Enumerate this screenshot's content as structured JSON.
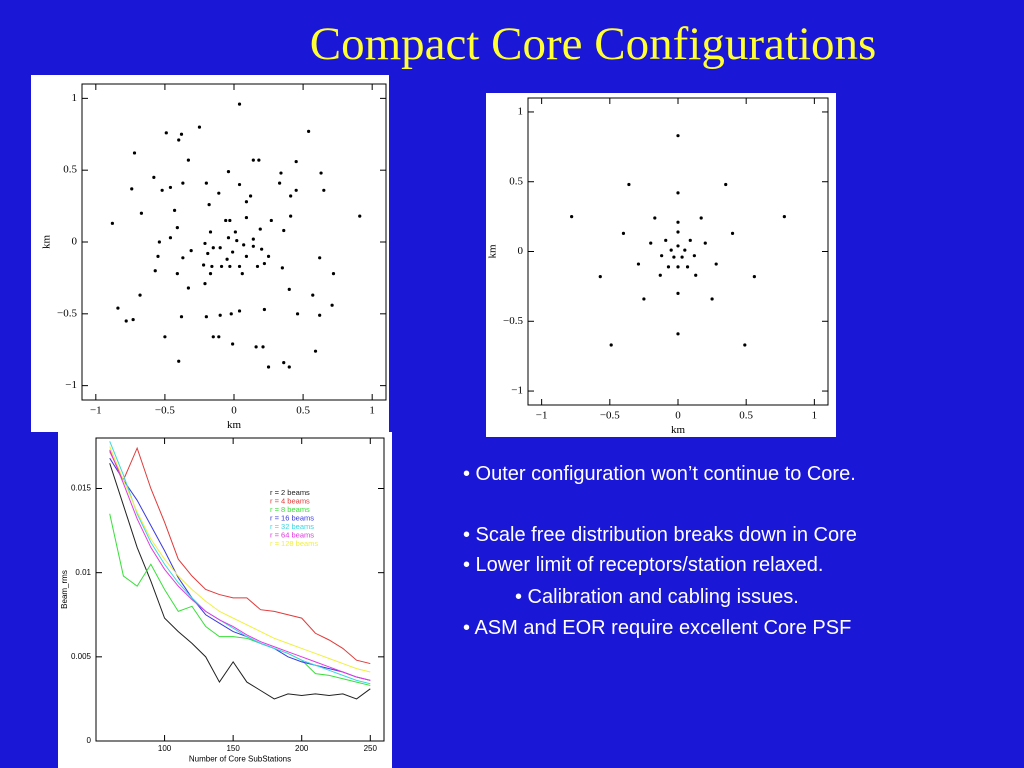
{
  "title": "Compact Core Configurations",
  "chart_data": [
    {
      "type": "scatter",
      "xlabel": "km",
      "ylabel": "km",
      "color": "#000000",
      "xlim": [
        -1.1,
        1.1
      ],
      "ylim": [
        -1.1,
        1.1
      ],
      "xticks": [
        {
          "value": -1,
          "label": "−1"
        },
        {
          "value": -0.5,
          "label": "−0.5"
        },
        0,
        0.5,
        1
      ],
      "yticks": [
        {
          "value": -1,
          "label": "−1"
        },
        {
          "value": -0.5,
          "label": "−0.5"
        },
        0,
        0.5,
        1
      ],
      "x": [
        0.04,
        -0.25,
        0.54,
        -0.49,
        -0.38,
        -0.4,
        -0.72,
        -0.33,
        0.14,
        0.18,
        0.45,
        -0.04,
        -0.58,
        0.34,
        0.63,
        -0.37,
        -0.46,
        -0.2,
        0.04,
        0.33,
        -0.74,
        -0.52,
        0.65,
        0.41,
        0.45,
        -0.11,
        0.12,
        0.09,
        -0.18,
        -0.43,
        -0.67,
        -0.06,
        -0.03,
        0.41,
        0.91,
        -0.88,
        0.09,
        0.27,
        -0.41,
        0.19,
        -0.17,
        0.01,
        0.36,
        -0.46,
        -0.04,
        0.02,
        0.14,
        -0.54,
        -0.21,
        -0.15,
        -0.1,
        0.07,
        0.14,
        -0.31,
        0.2,
        -0.19,
        -0.01,
        -0.55,
        -0.37,
        -0.05,
        0.09,
        0.25,
        0.62,
        -0.22,
        -0.16,
        -0.09,
        -0.03,
        0.04,
        0.17,
        0.22,
        -0.57,
        -0.41,
        -0.17,
        0.06,
        0.35,
        0.72,
        -0.21,
        -0.33,
        0.4,
        -0.68,
        0.57,
        -0.84,
        0.71,
        -0.38,
        -0.1,
        -0.02,
        0.04,
        0.22,
        0.46,
        0.62,
        -0.78,
        -0.73,
        -0.2,
        -0.5,
        -0.15,
        -0.11,
        -0.01,
        0.16,
        0.21,
        0.59,
        -0.4,
        0.36,
        0.25,
        0.4
      ],
      "values": [
        0.96,
        0.8,
        0.77,
        0.76,
        0.75,
        0.71,
        0.62,
        0.57,
        0.57,
        0.57,
        0.56,
        0.49,
        0.45,
        0.48,
        0.48,
        0.41,
        0.38,
        0.41,
        0.4,
        0.41,
        0.37,
        0.36,
        0.36,
        0.32,
        0.36,
        0.34,
        0.32,
        0.28,
        0.26,
        0.22,
        0.2,
        0.15,
        0.15,
        0.18,
        0.18,
        0.13,
        0.17,
        0.15,
        0.1,
        0.09,
        0.07,
        0.07,
        0.08,
        0.03,
        0.03,
        0.01,
        0.02,
        0.0,
        -0.01,
        -0.04,
        -0.04,
        -0.02,
        -0.03,
        -0.06,
        -0.05,
        -0.08,
        -0.07,
        -0.1,
        -0.11,
        -0.12,
        -0.1,
        -0.1,
        -0.11,
        -0.16,
        -0.17,
        -0.17,
        -0.17,
        -0.17,
        -0.17,
        -0.15,
        -0.2,
        -0.22,
        -0.22,
        -0.22,
        -0.18,
        -0.22,
        -0.29,
        -0.32,
        -0.33,
        -0.37,
        -0.37,
        -0.46,
        -0.44,
        -0.52,
        -0.51,
        -0.5,
        -0.48,
        -0.47,
        -0.5,
        -0.51,
        -0.55,
        -0.54,
        -0.52,
        -0.66,
        -0.66,
        -0.66,
        -0.71,
        -0.73,
        -0.73,
        -0.76,
        -0.83,
        -0.84,
        -0.87,
        -0.87
      ]
    },
    {
      "type": "scatter",
      "xlabel": "km",
      "ylabel": "km",
      "color": "#000000",
      "xlim": [
        -1.1,
        1.1
      ],
      "ylim": [
        -1.1,
        1.1
      ],
      "xticks": [
        {
          "value": -1,
          "label": "−1"
        },
        {
          "value": -0.5,
          "label": "−0.5"
        },
        0,
        0.5,
        1
      ],
      "yticks": [
        {
          "value": -1,
          "label": "−1"
        },
        {
          "value": -0.5,
          "label": "−0.5"
        },
        0,
        0.5,
        1
      ],
      "x": [
        0,
        -0.36,
        0.35,
        -0.78,
        0.78,
        0,
        -0.17,
        0.17,
        -0.4,
        0.4,
        0,
        -0.2,
        0.2,
        -0.09,
        0.09,
        0,
        -0.05,
        0.05,
        0,
        -0.03,
        0.03,
        -0.12,
        0.12,
        -0.07,
        0.07,
        0,
        -0.29,
        0.28,
        -0.57,
        0.56,
        -0.13,
        0.13,
        0,
        -0.25,
        0.25,
        0,
        -0.49,
        0.49
      ],
      "values": [
        0.83,
        0.48,
        0.48,
        0.25,
        0.25,
        0.42,
        0.24,
        0.24,
        0.13,
        0.13,
        0.21,
        0.06,
        0.06,
        0.08,
        0.08,
        0.14,
        0.01,
        0.01,
        0.04,
        -0.04,
        -0.04,
        -0.03,
        -0.03,
        -0.11,
        -0.11,
        -0.11,
        -0.09,
        -0.09,
        -0.18,
        -0.18,
        -0.17,
        -0.17,
        -0.3,
        -0.34,
        -0.34,
        -0.59,
        -0.67,
        -0.67
      ]
    },
    {
      "type": "line",
      "xlabel": "Number of Core SubStations",
      "ylabel": "Beam_rms",
      "xlim": [
        50,
        260
      ],
      "ylim": [
        0,
        0.018
      ],
      "xticks": [
        100,
        150,
        200,
        250
      ],
      "yticks": [
        0,
        0.005,
        0.01,
        0.015
      ],
      "legend": "upper-right",
      "x": [
        60,
        70,
        80,
        90,
        100,
        110,
        120,
        130,
        140,
        150,
        160,
        170,
        180,
        190,
        200,
        210,
        220,
        230,
        240,
        250
      ],
      "series": [
        {
          "name": "r = 2 beams",
          "color": "#202020",
          "values": [
            0.0165,
            0.014,
            0.0115,
            0.0095,
            0.0073,
            0.0065,
            0.0058,
            0.005,
            0.0035,
            0.0047,
            0.0035,
            0.003,
            0.0025,
            0.0028,
            0.0027,
            0.0028,
            0.0027,
            0.0028,
            0.0025,
            0.0031
          ]
        },
        {
          "name": "r = 4 beams",
          "color": "#e03a3a",
          "values": [
            0.0172,
            0.0155,
            0.0174,
            0.015,
            0.013,
            0.0108,
            0.0098,
            0.009,
            0.0087,
            0.0085,
            0.0085,
            0.0078,
            0.0077,
            0.0075,
            0.0073,
            0.0064,
            0.006,
            0.0055,
            0.0048,
            0.0046
          ]
        },
        {
          "name": "r = 8 beams",
          "color": "#3adf3a",
          "values": [
            0.0135,
            0.0098,
            0.0092,
            0.0105,
            0.009,
            0.0077,
            0.008,
            0.0068,
            0.0062,
            0.0062,
            0.0061,
            0.0058,
            0.0055,
            0.0052,
            0.0048,
            0.004,
            0.0039,
            0.0037,
            0.0035,
            0.0033
          ]
        },
        {
          "name": "r = 16 beams",
          "color": "#3a3ae0",
          "values": [
            0.0168,
            0.0155,
            0.0143,
            0.0128,
            0.0113,
            0.0097,
            0.0085,
            0.0075,
            0.007,
            0.0065,
            0.0062,
            0.0058,
            0.0055,
            0.005,
            0.0047,
            0.0045,
            0.0043,
            0.0041,
            0.0038,
            0.0036
          ]
        },
        {
          "name": "r = 32 beams",
          "color": "#3ad8e0",
          "values": [
            0.0178,
            0.0158,
            0.0135,
            0.0118,
            0.0105,
            0.0094,
            0.0085,
            0.0077,
            0.0072,
            0.0067,
            0.0062,
            0.0058,
            0.0055,
            0.0052,
            0.0048,
            0.0045,
            0.0042,
            0.0039,
            0.0036,
            0.0034
          ]
        },
        {
          "name": "r = 64 beams",
          "color": "#e03ae0",
          "values": [
            0.0173,
            0.0153,
            0.0132,
            0.0115,
            0.0102,
            0.0092,
            0.0084,
            0.0077,
            0.0072,
            0.0068,
            0.0063,
            0.0059,
            0.0056,
            0.0053,
            0.005,
            0.0047,
            0.0044,
            0.0041,
            0.0038,
            0.0036
          ]
        },
        {
          "name": "r = 128 beams",
          "color": "#f0f040",
          "values": [
            0.0175,
            0.0155,
            0.0136,
            0.012,
            0.0108,
            0.0098,
            0.009,
            0.0083,
            0.0077,
            0.0073,
            0.0069,
            0.0065,
            0.0061,
            0.0058,
            0.0055,
            0.0052,
            0.0049,
            0.0046,
            0.0043,
            0.0041
          ]
        }
      ]
    }
  ],
  "bullets": [
    "• Outer configuration won’t continue to Core.",
    "• Scale free distribution breaks down in Core",
    "• Lower limit of receptors/station relaxed.",
    "• Calibration and cabling issues.",
    "• ASM and EOR require excellent Core PSF"
  ]
}
